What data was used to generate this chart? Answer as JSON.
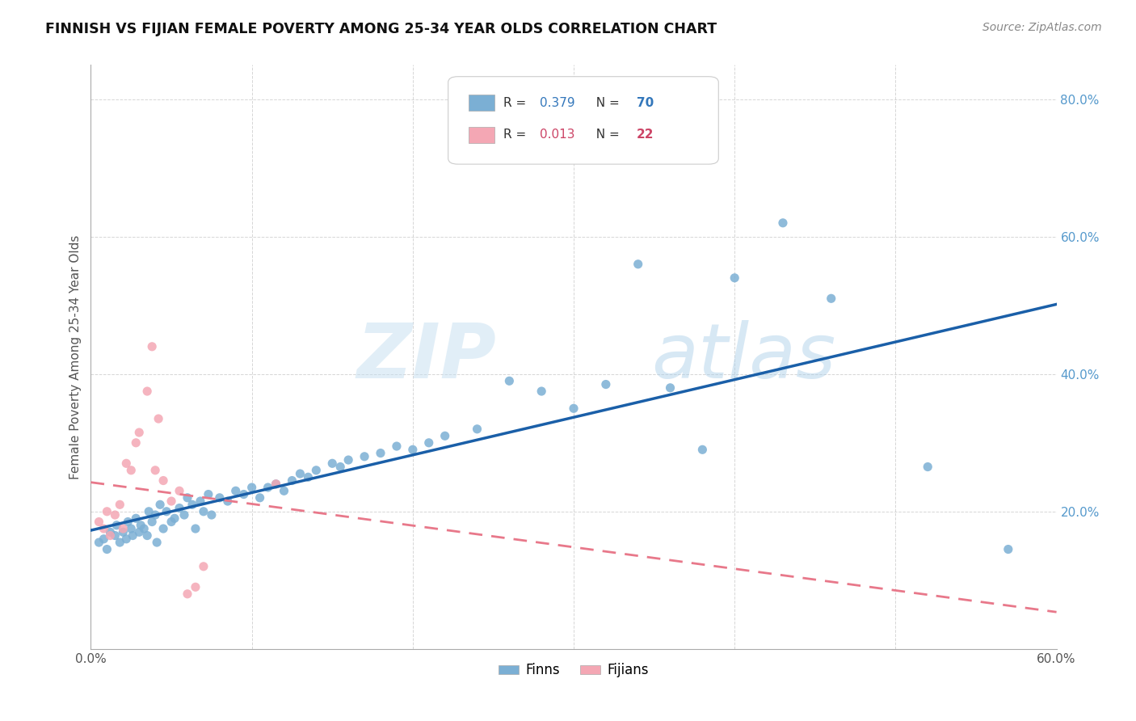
{
  "title": "FINNISH VS FIJIAN FEMALE POVERTY AMONG 25-34 YEAR OLDS CORRELATION CHART",
  "source": "Source: ZipAtlas.com",
  "ylabel": "Female Poverty Among 25-34 Year Olds",
  "xlim": [
    0.0,
    0.6
  ],
  "ylim": [
    0.0,
    0.85
  ],
  "finns_R": 0.379,
  "finns_N": 70,
  "fijians_R": 0.013,
  "fijians_N": 22,
  "finn_color": "#7bafd4",
  "fijian_color": "#f4a7b4",
  "finn_line_color": "#1a5fa8",
  "fijian_line_color": "#e8788a",
  "watermark_zip": "ZIP",
  "watermark_atlas": "atlas",
  "finns_x": [
    0.005,
    0.008,
    0.01,
    0.012,
    0.015,
    0.016,
    0.018,
    0.02,
    0.022,
    0.023,
    0.025,
    0.026,
    0.028,
    0.03,
    0.031,
    0.033,
    0.035,
    0.036,
    0.038,
    0.04,
    0.041,
    0.043,
    0.045,
    0.047,
    0.05,
    0.052,
    0.055,
    0.058,
    0.06,
    0.063,
    0.065,
    0.068,
    0.07,
    0.073,
    0.075,
    0.08,
    0.085,
    0.09,
    0.095,
    0.1,
    0.105,
    0.11,
    0.115,
    0.12,
    0.125,
    0.13,
    0.135,
    0.14,
    0.15,
    0.155,
    0.16,
    0.17,
    0.18,
    0.19,
    0.2,
    0.21,
    0.22,
    0.24,
    0.26,
    0.28,
    0.3,
    0.32,
    0.34,
    0.36,
    0.38,
    0.4,
    0.43,
    0.46,
    0.52,
    0.57
  ],
  "finns_y": [
    0.155,
    0.16,
    0.145,
    0.17,
    0.165,
    0.18,
    0.155,
    0.17,
    0.16,
    0.185,
    0.175,
    0.165,
    0.19,
    0.17,
    0.18,
    0.175,
    0.165,
    0.2,
    0.185,
    0.195,
    0.155,
    0.21,
    0.175,
    0.2,
    0.185,
    0.19,
    0.205,
    0.195,
    0.22,
    0.21,
    0.175,
    0.215,
    0.2,
    0.225,
    0.195,
    0.22,
    0.215,
    0.23,
    0.225,
    0.235,
    0.22,
    0.235,
    0.24,
    0.23,
    0.245,
    0.255,
    0.25,
    0.26,
    0.27,
    0.265,
    0.275,
    0.28,
    0.285,
    0.295,
    0.29,
    0.3,
    0.31,
    0.32,
    0.39,
    0.375,
    0.35,
    0.385,
    0.56,
    0.38,
    0.29,
    0.54,
    0.62,
    0.51,
    0.265,
    0.145
  ],
  "fijians_x": [
    0.005,
    0.008,
    0.01,
    0.012,
    0.015,
    0.018,
    0.02,
    0.022,
    0.025,
    0.028,
    0.03,
    0.035,
    0.038,
    0.04,
    0.042,
    0.045,
    0.05,
    0.055,
    0.06,
    0.065,
    0.07,
    0.115
  ],
  "fijians_y": [
    0.185,
    0.175,
    0.2,
    0.165,
    0.195,
    0.21,
    0.175,
    0.27,
    0.26,
    0.3,
    0.315,
    0.375,
    0.44,
    0.26,
    0.335,
    0.245,
    0.215,
    0.23,
    0.08,
    0.09,
    0.12,
    0.24
  ]
}
